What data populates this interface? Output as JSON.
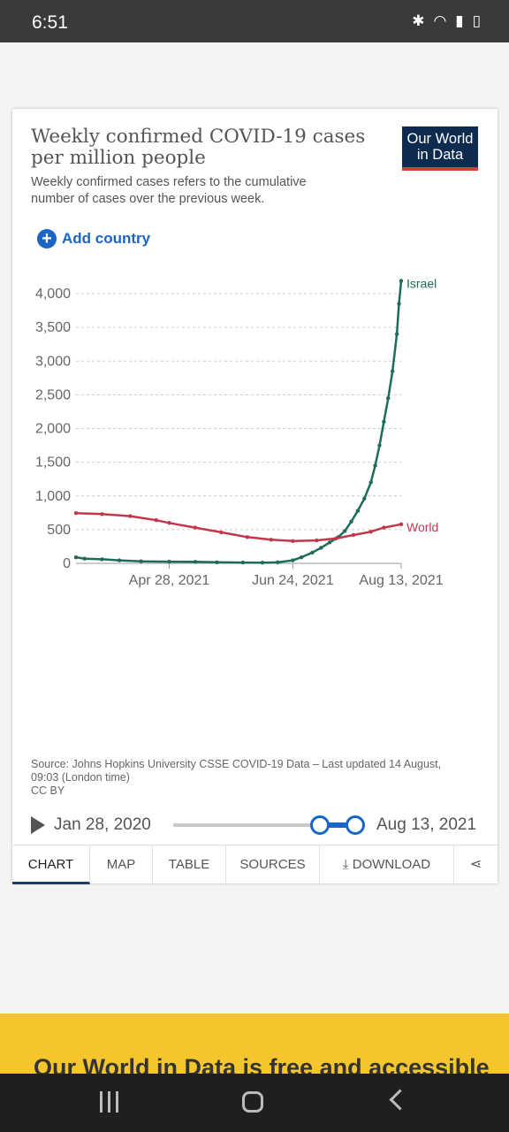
{
  "status_bar": {
    "time": "6:51",
    "icons": [
      "bluetooth-icon",
      "wifi-icon",
      "signal-icon",
      "battery-icon"
    ]
  },
  "card": {
    "title": "Weekly confirmed COVID-19 cases per million people",
    "subtitle": "Weekly confirmed cases refers to the cumulative number of cases over the previous week.",
    "logo_line1": "Our World",
    "logo_line2": "in Data",
    "add_country": "Add country",
    "source": "Source: Johns Hopkins University CSSE COVID-19 Data – Last updated 14 August, 09:03 (London time)",
    "license": "CC BY"
  },
  "chart_data": {
    "type": "line",
    "x_ticks": [
      "Apr 28, 2021",
      "Jun 24, 2021",
      "Aug 13, 2021"
    ],
    "y_ticks": [
      "0",
      "500",
      "1,000",
      "1,500",
      "2,000",
      "2,500",
      "3,000",
      "3,500",
      "4,000"
    ],
    "ylim": [
      0,
      4200
    ],
    "x_range": [
      "Mar 16, 2021",
      "Aug 13, 2021"
    ],
    "grid": true,
    "series": [
      {
        "name": "Israel",
        "color": "#1f6b5a",
        "points": [
          [
            "2021-03-16",
            90
          ],
          [
            "2021-03-20",
            70
          ],
          [
            "2021-03-28",
            60
          ],
          [
            "2021-04-05",
            45
          ],
          [
            "2021-04-15",
            30
          ],
          [
            "2021-04-28",
            25
          ],
          [
            "2021-05-10",
            22
          ],
          [
            "2021-05-20",
            16
          ],
          [
            "2021-06-01",
            12
          ],
          [
            "2021-06-10",
            10
          ],
          [
            "2021-06-17",
            15
          ],
          [
            "2021-06-24",
            45
          ],
          [
            "2021-06-28",
            90
          ],
          [
            "2021-07-03",
            160
          ],
          [
            "2021-07-07",
            230
          ],
          [
            "2021-07-11",
            310
          ],
          [
            "2021-07-15",
            390
          ],
          [
            "2021-07-18",
            480
          ],
          [
            "2021-07-21",
            620
          ],
          [
            "2021-07-24",
            780
          ],
          [
            "2021-07-27",
            960
          ],
          [
            "2021-07-30",
            1200
          ],
          [
            "2021-08-01",
            1450
          ],
          [
            "2021-08-03",
            1750
          ],
          [
            "2021-08-05",
            2100
          ],
          [
            "2021-08-07",
            2450
          ],
          [
            "2021-08-09",
            2850
          ],
          [
            "2021-08-11",
            3400
          ],
          [
            "2021-08-12",
            3850
          ],
          [
            "2021-08-13",
            4190
          ]
        ]
      },
      {
        "name": "World",
        "color": "#c2384a",
        "points": [
          [
            "2021-03-16",
            745
          ],
          [
            "2021-03-28",
            730
          ],
          [
            "2021-04-10",
            700
          ],
          [
            "2021-04-22",
            640
          ],
          [
            "2021-04-28",
            600
          ],
          [
            "2021-05-10",
            530
          ],
          [
            "2021-05-22",
            460
          ],
          [
            "2021-06-03",
            390
          ],
          [
            "2021-06-14",
            350
          ],
          [
            "2021-06-24",
            330
          ],
          [
            "2021-07-05",
            340
          ],
          [
            "2021-07-14",
            370
          ],
          [
            "2021-07-22",
            420
          ],
          [
            "2021-07-30",
            470
          ],
          [
            "2021-08-05",
            530
          ],
          [
            "2021-08-13",
            580
          ]
        ]
      }
    ]
  },
  "timeline": {
    "start": "Jan 28, 2020",
    "end": "Aug 13, 2021"
  },
  "tabs": [
    "CHART",
    "MAP",
    "TABLE",
    "SOURCES",
    "DOWNLOAD"
  ],
  "banner": "Our World in Data is free and accessible"
}
